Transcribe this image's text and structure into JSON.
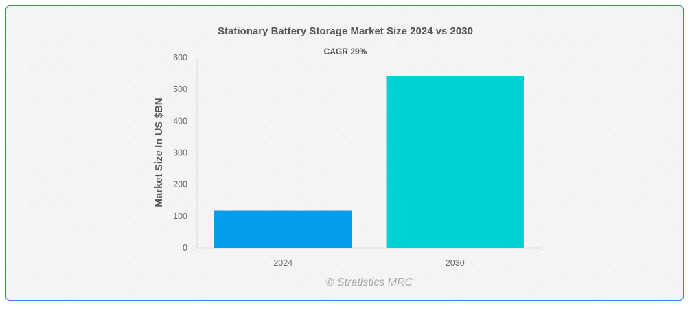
{
  "chart_data": {
    "type": "bar",
    "title": "Stationary Battery Storage Market Size 2024 vs 2030",
    "annotation": "CAGR 29%",
    "xlabel": "",
    "ylabel": "Market Size In US $BN",
    "categories": [
      "2024",
      "2030"
    ],
    "values": [
      118,
      543
    ],
    "ylim": [
      0,
      600
    ],
    "yticks": [
      0,
      100,
      200,
      300,
      400,
      500,
      600
    ],
    "colors": [
      "#039dea",
      "#00d2d3"
    ],
    "grid": false,
    "legend": "none"
  },
  "watermark": "© Stratistics MRC"
}
